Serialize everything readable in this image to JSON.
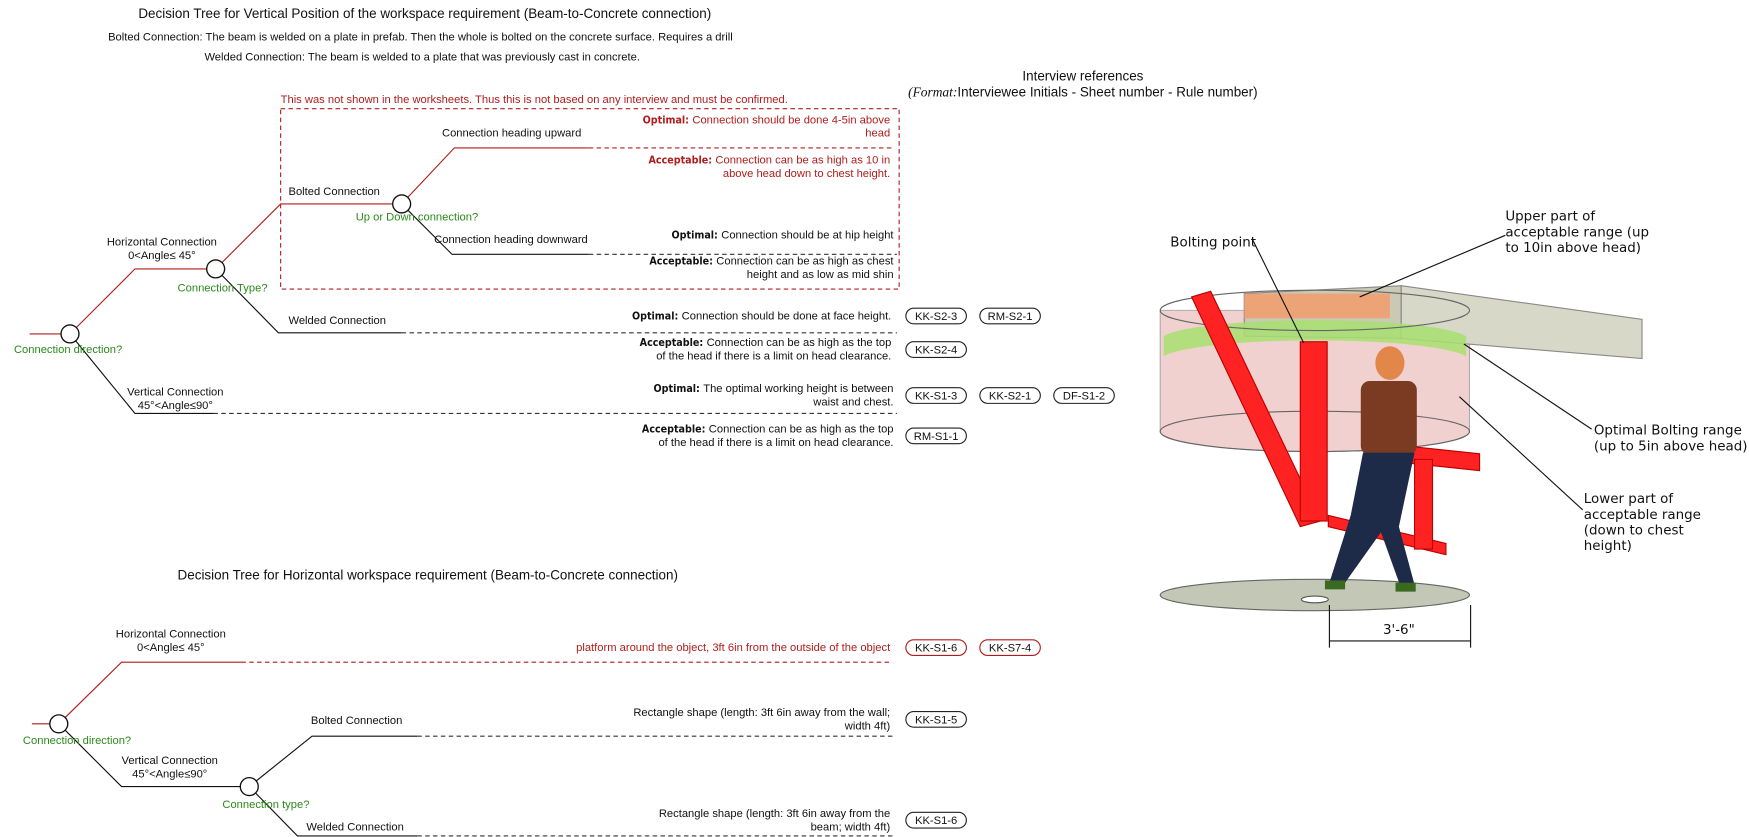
{
  "vertical_tree": {
    "title": "Decision Tree for Vertical Position of the workspace requirement (Beam-to-Concrete connection)",
    "notes": [
      "Bolted Connection: The beam is welded on a plate in prefab. Then the whole is bolted on the concrete surface. Requires a drill",
      "Welded Connection: The beam is welded to a plate that was previously cast in concrete."
    ],
    "unconfirmed_note": "This was not shown in the worksheets. Thus this is not based on any interview and must be confirmed.",
    "root": {
      "question": "Connection direction?"
    },
    "horizontal": {
      "label": [
        "Horizontal Connection",
        "0<Angle≤ 45°"
      ],
      "question": "Connection Type?"
    },
    "bolted": {
      "label": "Bolted Connection",
      "question": "Up or Down connection?"
    },
    "upward": {
      "label": "Connection heading upward",
      "optimal": {
        "label": "Optimal:",
        "lines": [
          "Connection should be done 4-5in above",
          "head"
        ]
      },
      "acceptable": {
        "label": "Acceptable:",
        "lines": [
          "Connection can be as high as 10 in",
          "above head down to chest height."
        ]
      }
    },
    "downward": {
      "label": "Connection heading downward",
      "optimal": {
        "label": "Optimal:",
        "lines": [
          "Connection should be at hip height"
        ]
      },
      "acceptable": {
        "label": "Acceptable:",
        "lines": [
          "Connection can be as high as chest",
          "height and as low as mid shin"
        ]
      }
    },
    "welded": {
      "label": "Welded Connection",
      "optimal": {
        "label": "Optimal:",
        "lines": [
          "Connection should be done at face height."
        ],
        "refs": [
          "KK-S2-3",
          "RM-S2-1"
        ]
      },
      "acceptable": {
        "label": "Acceptable:",
        "lines": [
          "Connection can be as high as the top",
          "of the head if there is a limit on head clearance."
        ],
        "refs": [
          "KK-S2-4"
        ]
      }
    },
    "vertical": {
      "label": [
        "Vertical Connection",
        "45°<Angle≤90°"
      ],
      "optimal": {
        "label": "Optimal:",
        "lines": [
          "The optimal working height is between",
          "waist and chest."
        ],
        "refs": [
          "KK-S1-3",
          "KK-S2-1",
          "DF-S1-2"
        ]
      },
      "acceptable": {
        "label": "Acceptable:",
        "lines": [
          "Connection can be as high as the top",
          "of the head if there is a limit on head clearance."
        ],
        "refs": [
          "RM-S1-1"
        ]
      }
    }
  },
  "interview_references": {
    "title": "Interview references",
    "format_label": "(Format:",
    "format_text": "Interviewee Initials - Sheet number - Rule number)"
  },
  "horizontal_tree": {
    "title": "Decision Tree for Horizontal workspace requirement (Beam-to-Concrete connection)",
    "root": {
      "question": "Connection direction?"
    },
    "horizontal": {
      "label": [
        "Horizontal Connection",
        "0<Angle≤ 45°"
      ],
      "outcome": {
        "lines": [
          "platform around the object,  3ft 6in from the outside of the object"
        ],
        "refs": [
          "KK-S1-6",
          "KK-S7-4"
        ]
      }
    },
    "vertical": {
      "label": [
        "Vertical Connection",
        "45°<Angle≤90°"
      ],
      "question": "Connection type?"
    },
    "bolted": {
      "label": "Bolted Connection",
      "outcome": {
        "lines": [
          "Rectangle shape (length: 3ft 6in away from the wall;",
          "width 4ft)"
        ],
        "refs": [
          "KK-S1-5"
        ]
      }
    },
    "welded": {
      "label": "Welded Connection",
      "outcome": {
        "lines": [
          "Rectangle shape (length: 3ft 6in away from the",
          "beam; width 4ft)"
        ],
        "refs": [
          "KK-S1-6"
        ]
      }
    }
  },
  "figure_labels": {
    "bolting_point": "Bolting point",
    "upper_range": [
      "Upper part of",
      "acceptable range (up",
      "to 10in above head)"
    ],
    "optimal_range": [
      "Optimal Bolting range",
      "(up to 5in above head)"
    ],
    "lower_range": [
      "Lower part of",
      "acceptable range",
      "(down to chest",
      "height)"
    ],
    "dimension": "3'-6\""
  }
}
